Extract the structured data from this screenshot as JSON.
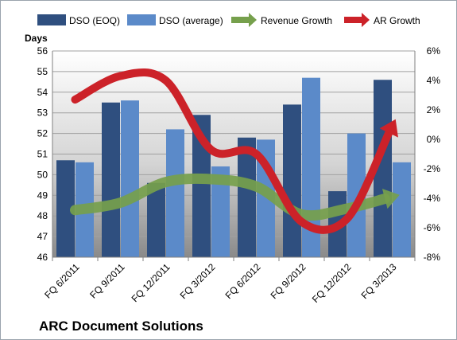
{
  "chart_data": {
    "type": "bar",
    "title": "ARC Document Solutions",
    "ylabel": "Days",
    "y2label": "",
    "categories": [
      "FQ 6/2011",
      "FQ 9/2011",
      "FQ 12/2011",
      "FQ 3/2012",
      "FQ 6/2012",
      "FQ 9/2012",
      "FQ 12/2012",
      "FQ 3/2013"
    ],
    "ylim": [
      46,
      56
    ],
    "y_ticks": [
      "46",
      "47",
      "48",
      "49",
      "50",
      "51",
      "52",
      "53",
      "54",
      "55",
      "56"
    ],
    "y2lim": [
      -8,
      6
    ],
    "y2_ticks": [
      "-8%",
      "-6%",
      "-4%",
      "-2%",
      "0%",
      "2%",
      "4%",
      "6%"
    ],
    "grid": true,
    "legend_position": "top",
    "series": [
      {
        "name": "DSO (EOQ)",
        "type": "bar",
        "axis": "left",
        "color": "#2f4f7f",
        "values": [
          50.7,
          53.5,
          49.6,
          52.9,
          51.8,
          53.4,
          49.2,
          54.6
        ]
      },
      {
        "name": "DSO (average)",
        "type": "bar",
        "axis": "left",
        "color": "#5b8ac9",
        "values": [
          50.6,
          53.6,
          52.2,
          50.4,
          51.7,
          54.7,
          52.0,
          50.6
        ]
      },
      {
        "name": "Revenue Growth",
        "type": "line",
        "axis": "right",
        "unit": "%",
        "color": "#76a04c",
        "values": [
          -4.8,
          -4.3,
          -2.9,
          -2.7,
          -3.2,
          -5.1,
          -4.7,
          -3.9
        ]
      },
      {
        "name": "AR Growth",
        "type": "line",
        "axis": "right",
        "unit": "%",
        "color": "#cc2229",
        "values": [
          2.7,
          4.3,
          4.0,
          -0.7,
          -1.0,
          -5.6,
          -5.4,
          0.9
        ]
      }
    ]
  }
}
